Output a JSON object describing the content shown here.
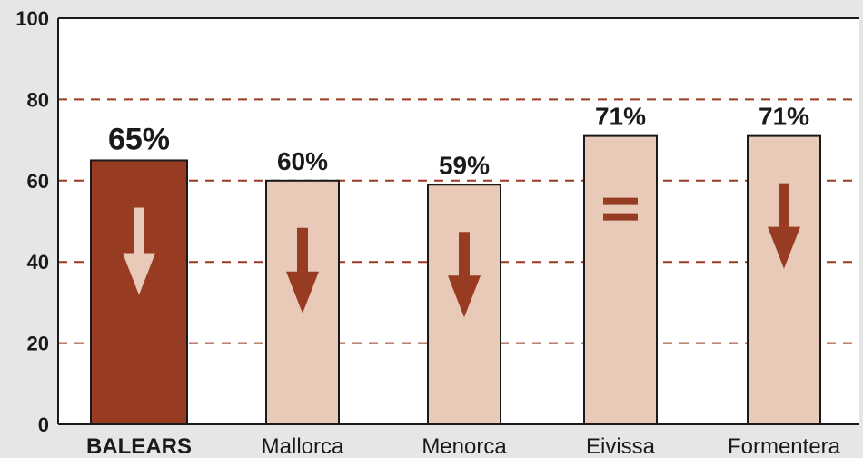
{
  "chart_data": {
    "type": "bar",
    "title": "",
    "xlabel": "",
    "ylabel": "",
    "ylim": [
      0,
      100
    ],
    "yticks": [
      0,
      20,
      40,
      60,
      80,
      100
    ],
    "grid": "dashed horizontal at 20, 40, 60, 80",
    "categories": [
      "BALEARS",
      "Mallorca",
      "Menorca",
      "Eivissa",
      "Formentera"
    ],
    "values": [
      65,
      60,
      59,
      71,
      71
    ],
    "data_labels": [
      "65%",
      "60%",
      "59%",
      "71%",
      "71%"
    ],
    "trend_icons": [
      "arrow-down-icon",
      "arrow-down-icon",
      "arrow-down-icon",
      "equals-icon",
      "arrow-down-icon"
    ],
    "colors": {
      "highlight_bar": "#973c22",
      "bar": "#e9c9b7",
      "highlight_arrow": "#e9c9b7",
      "arrow": "#973c22",
      "grid": "#973c22",
      "plot_background": "#ffffff",
      "page_background": "#e6e6e6"
    }
  }
}
